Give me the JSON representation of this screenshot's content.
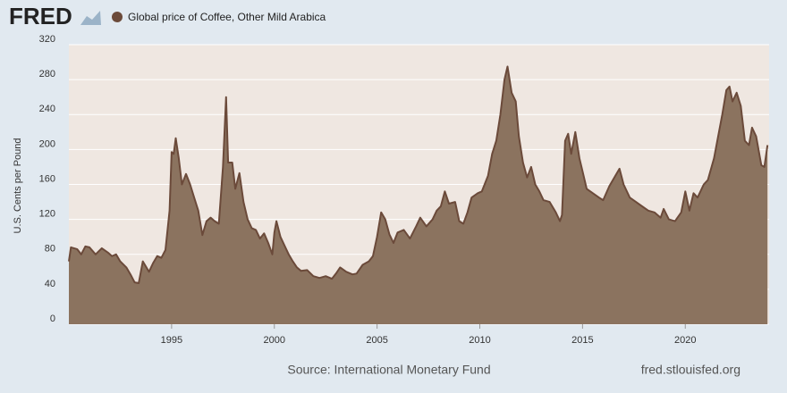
{
  "brand": "FRED",
  "chart_data": {
    "type": "area",
    "y_label": "U.S. Cents per Pound",
    "source": "Source: International Monetary Fund",
    "url": "fred.stlouisfed.org",
    "xlim": [
      1990,
      2024.08
    ],
    "xticks": [
      1995,
      2000,
      2005,
      2010,
      2015,
      2020
    ],
    "ylim": [
      0,
      320
    ],
    "yticks": [
      0,
      40,
      80,
      120,
      160,
      200,
      240,
      280,
      320
    ],
    "grid": true,
    "x": [
      1990.0,
      1990.1,
      1990.4,
      1990.6,
      1990.8,
      1991.0,
      1991.3,
      1991.6,
      1991.9,
      1992.1,
      1992.3,
      1992.5,
      1992.8,
      1993.0,
      1993.2,
      1993.4,
      1993.6,
      1993.9,
      1994.1,
      1994.3,
      1994.5,
      1994.7,
      1994.9,
      1995.0,
      1995.1,
      1995.2,
      1995.35,
      1995.5,
      1995.7,
      1995.9,
      1996.1,
      1996.3,
      1996.5,
      1996.7,
      1996.9,
      1997.1,
      1997.3,
      1997.5,
      1997.65,
      1997.75,
      1997.95,
      1998.1,
      1998.3,
      1998.5,
      1998.7,
      1998.9,
      1999.1,
      1999.3,
      1999.5,
      1999.7,
      1999.9,
      2000.0,
      2000.1,
      2000.3,
      2000.5,
      2000.7,
      2000.9,
      2001.1,
      2001.3,
      2001.6,
      2001.9,
      2002.2,
      2002.5,
      2002.8,
      2003.0,
      2003.2,
      2003.5,
      2003.8,
      2004.0,
      2004.3,
      2004.6,
      2004.8,
      2005.0,
      2005.2,
      2005.4,
      2005.6,
      2005.8,
      2006.0,
      2006.3,
      2006.6,
      2006.9,
      2007.1,
      2007.4,
      2007.7,
      2007.9,
      2008.1,
      2008.3,
      2008.5,
      2008.8,
      2009.0,
      2009.2,
      2009.4,
      2009.6,
      2009.9,
      2010.1,
      2010.4,
      2010.6,
      2010.8,
      2011.0,
      2011.2,
      2011.35,
      2011.55,
      2011.75,
      2011.9,
      2012.1,
      2012.3,
      2012.5,
      2012.7,
      2012.9,
      2013.1,
      2013.4,
      2013.7,
      2013.9,
      2014.0,
      2014.15,
      2014.3,
      2014.45,
      2014.65,
      2014.85,
      2015.0,
      2015.2,
      2015.5,
      2015.8,
      2016.0,
      2016.3,
      2016.6,
      2016.8,
      2017.0,
      2017.3,
      2017.6,
      2017.9,
      2018.2,
      2018.5,
      2018.8,
      2018.95,
      2019.2,
      2019.5,
      2019.8,
      2020.0,
      2020.2,
      2020.4,
      2020.6,
      2020.9,
      2021.1,
      2021.4,
      2021.6,
      2021.8,
      2022.0,
      2022.15,
      2022.3,
      2022.5,
      2022.7,
      2022.9,
      2023.1,
      2023.25,
      2023.45,
      2023.7,
      2023.85,
      2024.0
    ],
    "series": [
      {
        "name": "Global price of Coffee, Other Mild Arabica",
        "color": "#8b735f",
        "line_color": "#6b4a3a",
        "values": [
          72,
          88,
          86,
          80,
          89,
          88,
          80,
          87,
          82,
          78,
          80,
          72,
          65,
          57,
          48,
          47,
          72,
          60,
          70,
          78,
          76,
          85,
          130,
          197,
          195,
          213,
          190,
          160,
          172,
          160,
          145,
          130,
          102,
          118,
          122,
          118,
          115,
          180,
          260,
          185,
          185,
          155,
          173,
          140,
          120,
          110,
          108,
          98,
          104,
          93,
          80,
          105,
          118,
          100,
          90,
          80,
          72,
          65,
          61,
          62,
          55,
          53,
          55,
          52,
          58,
          65,
          60,
          57,
          58,
          68,
          72,
          78,
          100,
          128,
          120,
          103,
          93,
          105,
          108,
          98,
          112,
          122,
          112,
          120,
          130,
          135,
          152,
          138,
          140,
          118,
          115,
          128,
          145,
          150,
          152,
          170,
          195,
          210,
          240,
          280,
          295,
          265,
          255,
          215,
          185,
          168,
          180,
          160,
          152,
          142,
          140,
          128,
          118,
          125,
          210,
          218,
          195,
          220,
          190,
          175,
          155,
          150,
          145,
          142,
          158,
          170,
          178,
          160,
          145,
          140,
          135,
          130,
          128,
          122,
          132,
          120,
          118,
          128,
          152,
          130,
          150,
          145,
          160,
          165,
          190,
          215,
          240,
          268,
          272,
          255,
          265,
          250,
          210,
          205,
          225,
          215,
          182,
          180,
          205
        ]
      }
    ]
  }
}
